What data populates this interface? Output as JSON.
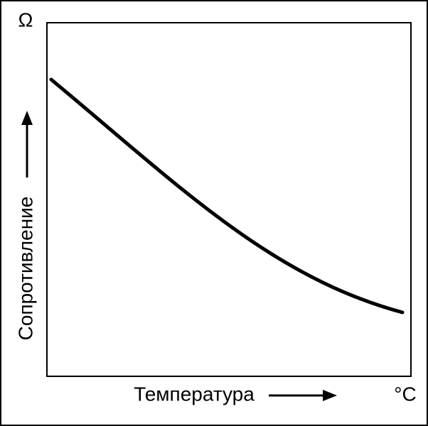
{
  "y_axis": {
    "label": "Сопротивление",
    "unit": "Ω"
  },
  "x_axis": {
    "label": "Температура",
    "unit": "°C"
  }
}
